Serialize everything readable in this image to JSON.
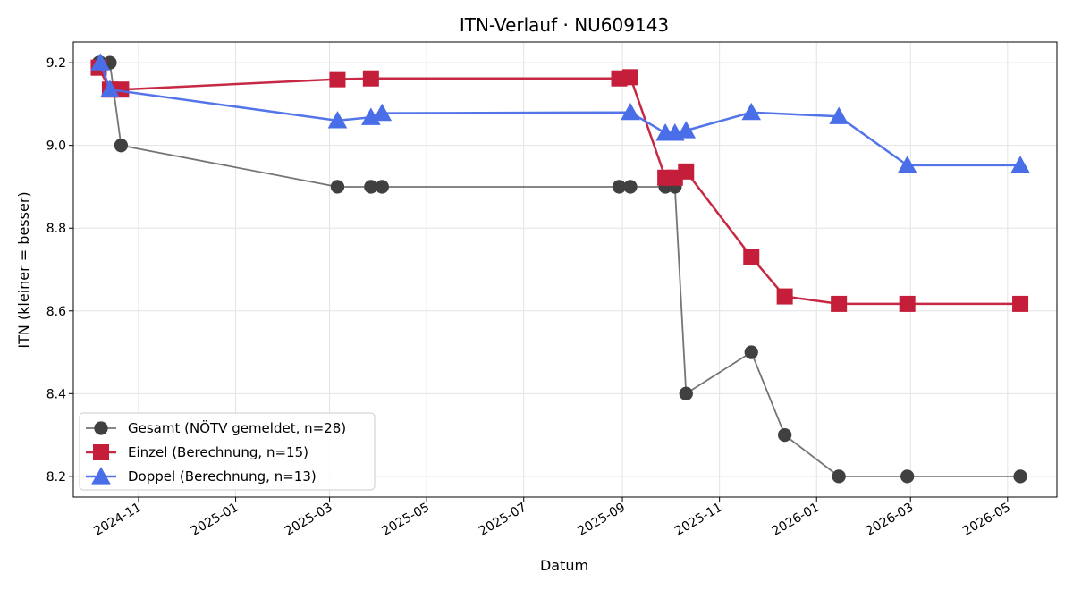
{
  "chart_data": {
    "type": "line",
    "title": "ITN-Verlauf · NU609143",
    "xlabel": "Datum",
    "ylabel": "ITN  (kleiner = besser)",
    "x_axis_type": "date",
    "xlim": [
      "2024-09-21",
      "2026-06-01"
    ],
    "ylim": [
      8.15,
      9.25
    ],
    "x_ticks": [
      "2024-11-01",
      "2025-01-01",
      "2025-03-01",
      "2025-05-01",
      "2025-07-01",
      "2025-09-01",
      "2025-11-01",
      "2026-01-01",
      "2026-03-01",
      "2026-05-01"
    ],
    "x_tick_labels": [
      "2024-11",
      "2025-01",
      "2025-03",
      "2025-05",
      "2025-07",
      "2025-09",
      "2025-11",
      "2026-01",
      "2026-03",
      "2026-05"
    ],
    "y_ticks": [
      8.2,
      8.4,
      8.6,
      8.8,
      9.0,
      9.2
    ],
    "y_tick_labels": [
      "8.2",
      "8.4",
      "8.6",
      "8.8",
      "9.0",
      "9.2"
    ],
    "grid": true,
    "legend_position": "lower-left",
    "series": [
      {
        "name": "Gesamt (NÖTV gemeldet, n=28)",
        "color": "#404040",
        "marker": "circle",
        "points": [
          [
            "2024-10-07",
            9.2
          ],
          [
            "2024-10-08",
            9.2
          ],
          [
            "2024-10-14",
            9.2
          ],
          [
            "2024-10-21",
            9.0
          ],
          [
            "2025-03-06",
            8.9
          ],
          [
            "2025-03-27",
            8.9
          ],
          [
            "2025-04-03",
            8.9
          ],
          [
            "2025-08-30",
            8.9
          ],
          [
            "2025-09-06",
            8.9
          ],
          [
            "2025-09-28",
            8.9
          ],
          [
            "2025-10-04",
            8.9
          ],
          [
            "2025-10-11",
            8.4
          ],
          [
            "2025-11-21",
            8.5
          ],
          [
            "2025-12-12",
            8.3
          ],
          [
            "2026-01-15",
            8.2
          ],
          [
            "2026-02-27",
            8.2
          ],
          [
            "2026-05-09",
            8.2
          ]
        ]
      },
      {
        "name": "Einzel (Berechnung, n=15)",
        "color": "#c41e3a",
        "marker": "square",
        "points": [
          [
            "2024-10-07",
            9.188
          ],
          [
            "2024-10-14",
            9.135
          ],
          [
            "2024-10-21",
            9.135
          ],
          [
            "2025-03-06",
            9.16
          ],
          [
            "2025-03-27",
            9.162
          ],
          [
            "2025-08-30",
            9.162
          ],
          [
            "2025-09-06",
            9.165
          ],
          [
            "2025-09-28",
            8.922
          ],
          [
            "2025-10-04",
            8.922
          ],
          [
            "2025-10-11",
            8.937
          ],
          [
            "2025-11-21",
            8.73
          ],
          [
            "2025-12-12",
            8.635
          ],
          [
            "2026-01-15",
            8.617
          ],
          [
            "2026-02-27",
            8.617
          ],
          [
            "2026-05-09",
            8.617
          ]
        ]
      },
      {
        "name": "Doppel (Berechnung, n=13)",
        "color": "#4a6ee8",
        "marker": "triangle",
        "points": [
          [
            "2024-10-08",
            9.2
          ],
          [
            "2024-10-14",
            9.135
          ],
          [
            "2025-03-06",
            9.06
          ],
          [
            "2025-03-27",
            9.068
          ],
          [
            "2025-04-03",
            9.078
          ],
          [
            "2025-09-06",
            9.08
          ],
          [
            "2025-09-28",
            9.03
          ],
          [
            "2025-10-04",
            9.03
          ],
          [
            "2025-10-11",
            9.036
          ],
          [
            "2025-11-21",
            9.08
          ],
          [
            "2026-01-15",
            9.07
          ],
          [
            "2026-02-27",
            8.952
          ],
          [
            "2026-05-09",
            8.952
          ]
        ]
      }
    ]
  }
}
